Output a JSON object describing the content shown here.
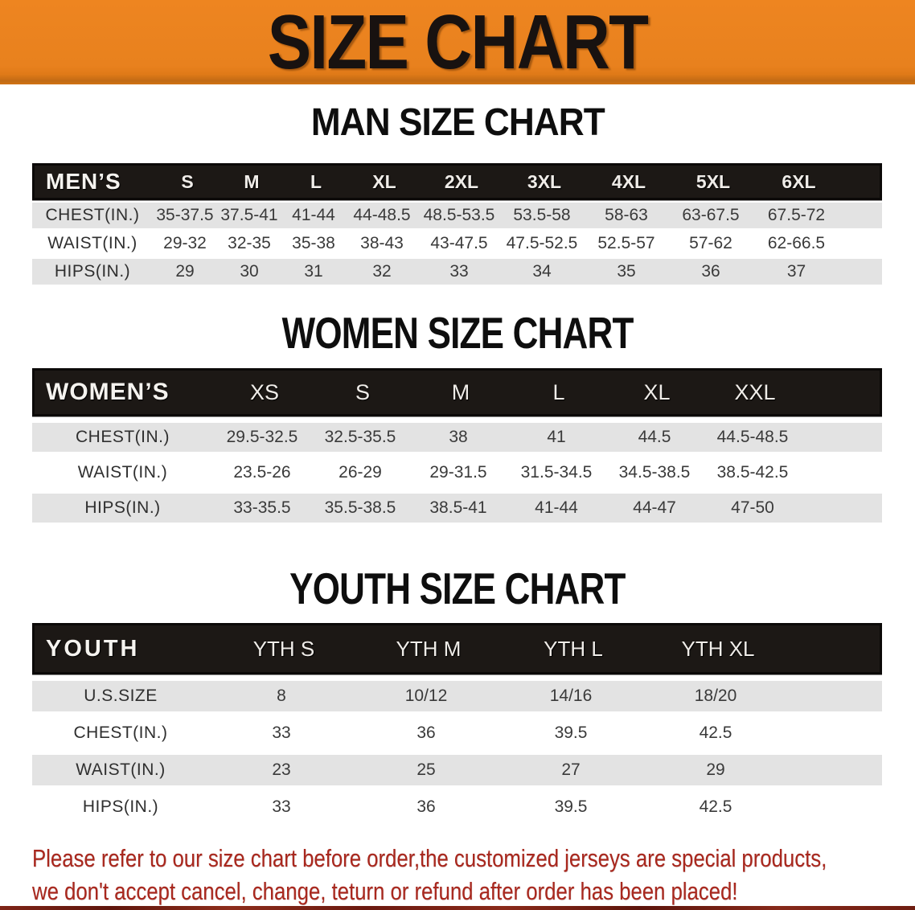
{
  "banner": {
    "title": "SIZE CHART",
    "bg_color": "#E8811E",
    "text_color": "#181210"
  },
  "colors": {
    "table_header_bg": "#1C1815",
    "row_stripe": "#E3E3E3",
    "body_text": "#3A3A3A",
    "footer_red": "#A9281E"
  },
  "sections": [
    {
      "id": "men",
      "heading": "MAN SIZE CHART",
      "table": {
        "label": "MEN’S",
        "columns": [
          "S",
          "M",
          "L",
          "XL",
          "2XL",
          "3XL",
          "4XL",
          "5XL",
          "6XL"
        ],
        "rows": [
          {
            "label": "CHEST(IN.)",
            "values": [
              "35-37.5",
              "37.5-41",
              "41-44",
              "44-48.5",
              "48.5-53.5",
              "53.5-58",
              "58-63",
              "63-67.5",
              "67.5-72"
            ]
          },
          {
            "label": "WAIST(IN.)",
            "values": [
              "29-32",
              "32-35",
              "35-38",
              "38-43",
              "43-47.5",
              "47.5-52.5",
              "52.5-57",
              "57-62",
              "62-66.5"
            ]
          },
          {
            "label": "HIPS(IN.)",
            "values": [
              "29",
              "30",
              "31",
              "32",
              "33",
              "34",
              "35",
              "36",
              "37"
            ]
          }
        ]
      }
    },
    {
      "id": "women",
      "heading": "WOMEN SIZE CHART",
      "table": {
        "label": "WOMEN’S",
        "columns": [
          "XS",
          "S",
          "M",
          "L",
          "XL",
          "XXL"
        ],
        "rows": [
          {
            "label": "CHEST(IN.)",
            "values": [
              "29.5-32.5",
              "32.5-35.5",
              "38",
              "41",
              "44.5",
              "44.5-48.5"
            ]
          },
          {
            "label": "WAIST(IN.)",
            "values": [
              "23.5-26",
              "26-29",
              "29-31.5",
              "31.5-34.5",
              "34.5-38.5",
              "38.5-42.5"
            ]
          },
          {
            "label": "HIPS(IN.)",
            "values": [
              "33-35.5",
              "35.5-38.5",
              "38.5-41",
              "41-44",
              "44-47",
              "47-50"
            ]
          }
        ]
      }
    },
    {
      "id": "youth",
      "heading": "YOUTH SIZE CHART",
      "table": {
        "label": "YOUTH",
        "columns": [
          "YTH S",
          "YTH M",
          "YTH L",
          "YTH XL"
        ],
        "rows": [
          {
            "label": "U.S.SIZE",
            "values": [
              "8",
              "10/12",
              "14/16",
              "18/20"
            ]
          },
          {
            "label": "CHEST(IN.)",
            "values": [
              "33",
              "36",
              "39.5",
              "42.5"
            ]
          },
          {
            "label": "WAIST(IN.)",
            "values": [
              "23",
              "25",
              "27",
              "29"
            ]
          },
          {
            "label": "HIPS(IN.)",
            "values": [
              "33",
              "36",
              "39.5",
              "42.5"
            ]
          }
        ]
      }
    }
  ],
  "footer": {
    "line1": "Please refer to our size chart before order,the customized jerseys are special products,",
    "line2": "we don't accept cancel, change, teturn or refund after order has been placed!"
  }
}
